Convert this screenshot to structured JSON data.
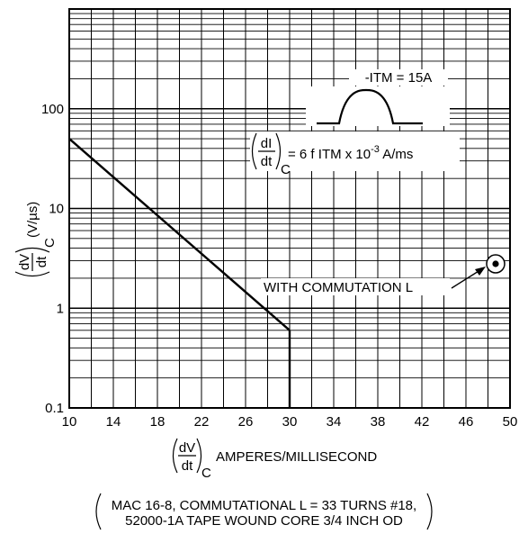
{
  "chart_data": {
    "type": "line",
    "x_ticks": [
      10,
      14,
      18,
      22,
      26,
      30,
      34,
      38,
      42,
      46,
      50
    ],
    "y_ticks": [
      "0.1",
      "1",
      "10",
      "100"
    ],
    "xlim": [
      10,
      50
    ],
    "ylim": [
      0.1,
      1000
    ],
    "y_scale": "log",
    "grid": true,
    "xlabel": {
      "fraction_num": "dV",
      "fraction_den": "dt",
      "subscript": "C",
      "text": "AMPERES/MILLISECOND"
    },
    "ylabel": {
      "fraction_num": "dV",
      "fraction_den": "dt",
      "subscript": "C",
      "units": "(V/µs)"
    },
    "series": [
      {
        "x": [
          10,
          30
        ],
        "y": [
          50,
          0.6
        ]
      },
      {
        "x": [
          30,
          30
        ],
        "y": [
          0.6,
          0.1
        ]
      }
    ],
    "annotations": {
      "itm": "-ITM = 15A",
      "formula": {
        "num": "dI",
        "den": "dt",
        "sub": "C",
        "text": "= 6 f ITM x 10",
        "exp": "-3",
        "unit": " A/ms"
      },
      "commutation": "WITH COMMUTATION L"
    },
    "caption": {
      "line1": "MAC 16-8, COMMUTATIONAL L = 33 TURNS #18,",
      "line2": "52000-1A TAPE WOUND CORE 3/4 INCH OD"
    }
  }
}
